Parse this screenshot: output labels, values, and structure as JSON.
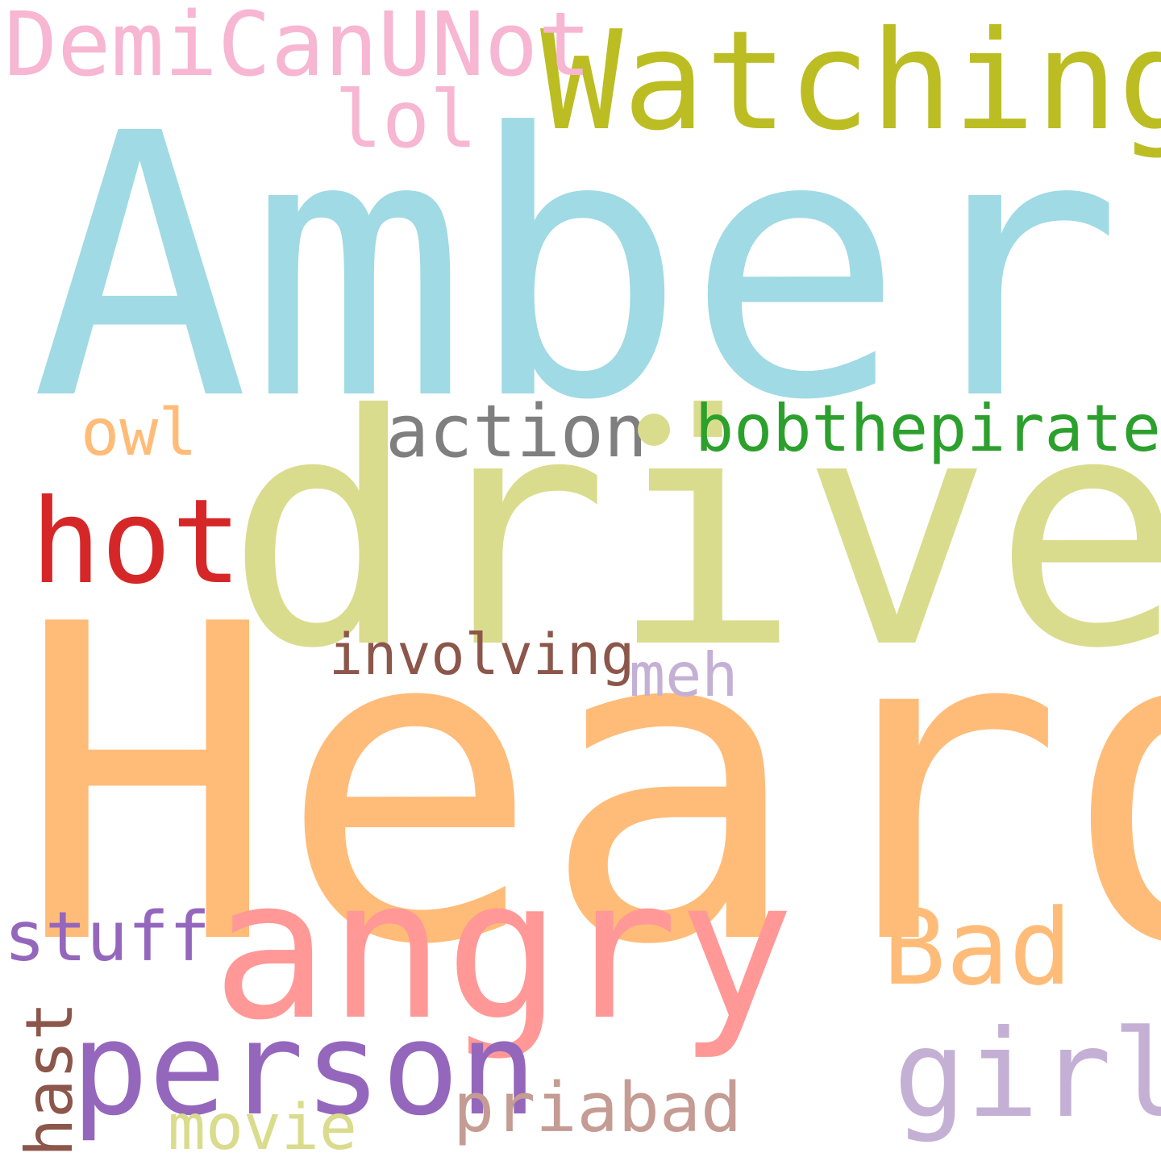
{
  "words": {
    "amber": {
      "text": "Amber",
      "color": "#A0DAE4"
    },
    "heard": {
      "text": "Heard",
      "color": "#FFBC79"
    },
    "drive": {
      "text": "drive",
      "color": "#DADC8D"
    },
    "angry": {
      "text": "angry",
      "color": "#FF9896"
    },
    "watching": {
      "text": "Watching",
      "color": "#BCBD22"
    },
    "demicanunot": {
      "text": "DemiCanUNot",
      "color": "#F7B6D2"
    },
    "lol": {
      "text": "lol",
      "color": "#F7B6D2"
    },
    "person": {
      "text": "person",
      "color": "#9467BD"
    },
    "girl": {
      "text": "girl",
      "color": "#C5B0D5"
    },
    "bad": {
      "text": "Bad",
      "color": "#FFBC79"
    },
    "hot": {
      "text": "hot",
      "color": "#D62728"
    },
    "action": {
      "text": "action",
      "color": "#7F7F7F"
    },
    "bobthepirate": {
      "text": "bobthepirate",
      "color": "#2CA02C"
    },
    "owl": {
      "text": "owl",
      "color": "#FFBC79"
    },
    "involving": {
      "text": "involving",
      "color": "#8C564B"
    },
    "meh": {
      "text": "meh",
      "color": "#C5B0D5"
    },
    "stuff": {
      "text": "stuff",
      "color": "#9467BD"
    },
    "priabad": {
      "text": "priabad",
      "color": "#C49C94"
    },
    "movie": {
      "text": "movie",
      "color": "#DADC8D"
    },
    "hast": {
      "text": "hast",
      "color": "#8C564B"
    }
  },
  "dot": {
    "color": "#DADC8D"
  }
}
